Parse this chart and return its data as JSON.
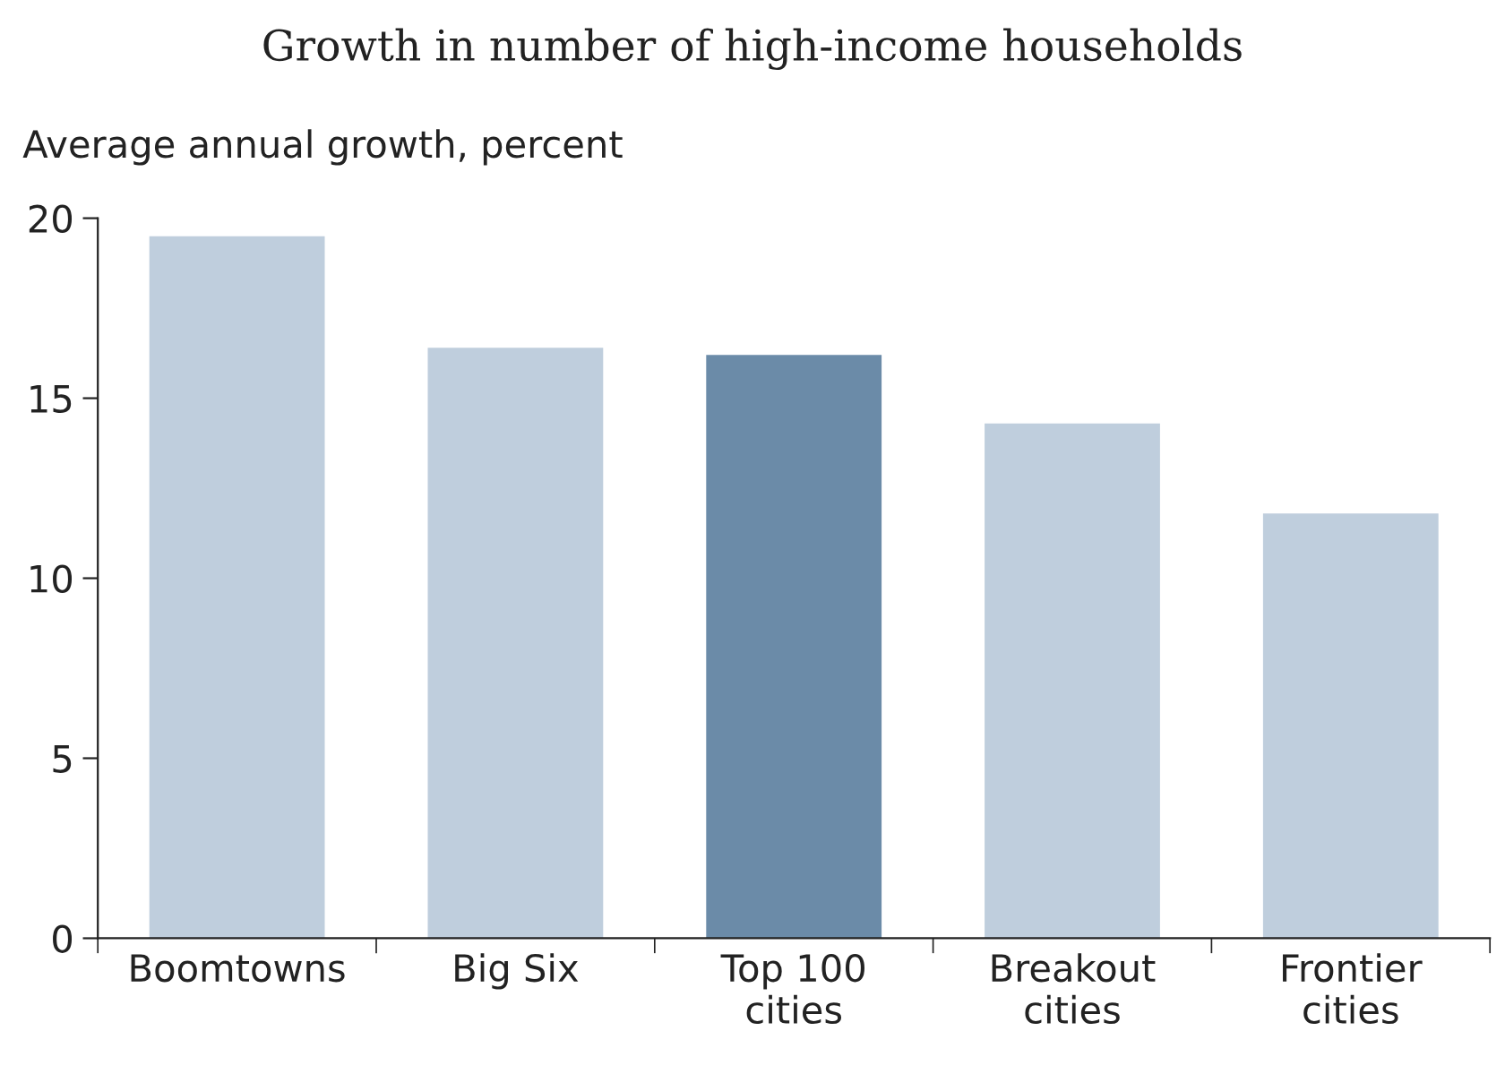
{
  "chart_data": {
    "type": "bar",
    "title": "Growth in number of high-income households",
    "ylabel": "Average annual growth, percent",
    "categories": [
      "Boomtowns",
      "Big Six",
      "Top 100\ncities",
      "Breakout\ncities",
      "Frontier\ncities"
    ],
    "values": [
      19.5,
      16.4,
      16.2,
      14.3,
      11.8
    ],
    "colors": [
      "#bfcedd",
      "#bfcedd",
      "#6b8ba8",
      "#bfcedd",
      "#bfcedd"
    ],
    "ylim": [
      0,
      20
    ],
    "yticks": [
      0,
      5,
      10,
      15,
      20
    ],
    "grid": false,
    "legend": false
  }
}
